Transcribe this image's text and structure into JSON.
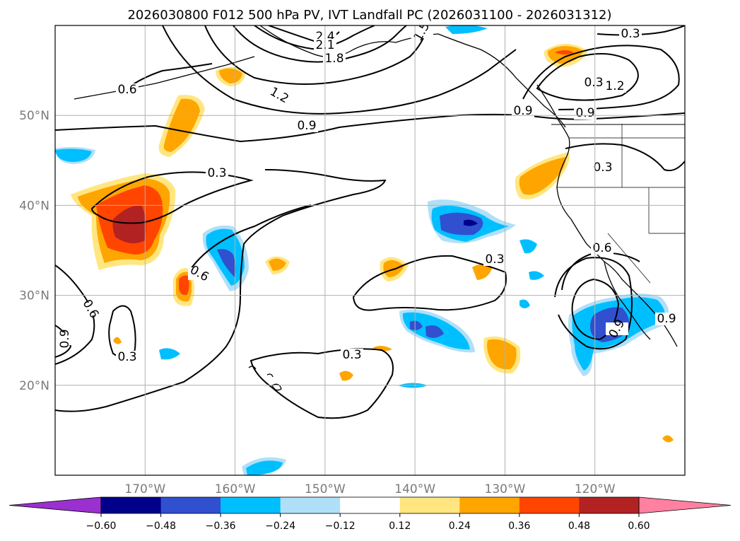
{
  "chart_data": {
    "type": "contour-map",
    "title": "2026030800 F012 500 hPa PV, IVT Landfall PC (2026031100 - 2026031312)",
    "lon_range": [
      -180,
      -110
    ],
    "lat_range": [
      10,
      60
    ],
    "x_ticks": [
      {
        "value": -170,
        "label": "170°W"
      },
      {
        "value": -160,
        "label": "160°W"
      },
      {
        "value": -150,
        "label": "150°W"
      },
      {
        "value": -140,
        "label": "140°W"
      },
      {
        "value": -130,
        "label": "130°W"
      },
      {
        "value": -120,
        "label": "120°W"
      }
    ],
    "y_ticks": [
      {
        "value": 20,
        "label": "20°N"
      },
      {
        "value": 30,
        "label": "30°N"
      },
      {
        "value": 40,
        "label": "40°N"
      },
      {
        "value": 50,
        "label": "50°N"
      }
    ],
    "grid": true,
    "colorbar": {
      "orientation": "horizontal",
      "extend": "both",
      "levels": [
        -0.72,
        -0.6,
        -0.48,
        -0.36,
        -0.24,
        -0.12,
        0.12,
        0.24,
        0.36,
        0.48,
        0.6,
        0.72
      ],
      "colors": [
        "#9b30d0",
        "#00008b",
        "#3050d0",
        "#00bfff",
        "#b0e0f8",
        "#ffffff",
        "#ffe680",
        "#ffa500",
        "#ff4500",
        "#b22222",
        "#ff80a0"
      ],
      "tick_labels": [
        "−0.60",
        "−0.48",
        "−0.36",
        "−0.24",
        "−0.12",
        "0.12",
        "0.24",
        "0.36",
        "0.48",
        "0.60"
      ]
    },
    "pv_contour_labels": [
      "2.4",
      "2.1",
      "1.8",
      "1.5",
      "1.2",
      "0.9",
      "0.6",
      "0.3",
      "0.3",
      "0.3",
      "1.2",
      "0.9",
      "0.9",
      "0.3",
      "0.6",
      "0.3",
      "0.6",
      "0.6",
      "0.9",
      "0.3",
      "0.3",
      "0.9",
      "0.9",
      "0.6"
    ],
    "fill_regions": [
      {
        "name": "central-pacific-positive",
        "lon": -172,
        "lat": 39,
        "peak": 0.5
      },
      {
        "name": "gulf-of-alaska-positive",
        "lon": -163,
        "lat": 48,
        "peak": 0.26
      },
      {
        "name": "bc-coast-positive",
        "lon": -123,
        "lat": 57,
        "peak": 0.4
      },
      {
        "name": "oregon-offshore-positive",
        "lon": -125,
        "lat": 43,
        "peak": 0.26
      },
      {
        "name": "subtropical-negative-north",
        "lon": -135,
        "lat": 38,
        "peak": -0.5
      },
      {
        "name": "baja-negative",
        "lon": -117,
        "lat": 25,
        "peak": -0.42
      },
      {
        "name": "hawaii-north-negative",
        "lon": -160,
        "lat": 35,
        "peak": -0.4
      },
      {
        "name": "mid-pacific-negative",
        "lon": -138,
        "lat": 25,
        "peak": -0.4
      },
      {
        "name": "west-of-hawaii-positive",
        "lon": -166,
        "lat": 31,
        "peak": 0.4
      },
      {
        "name": "mid-pacific-positive",
        "lon": -142,
        "lat": 33,
        "peak": 0.26
      },
      {
        "name": "subtropical-east-positive",
        "lon": -130,
        "lat": 23,
        "peak": 0.26
      }
    ]
  }
}
